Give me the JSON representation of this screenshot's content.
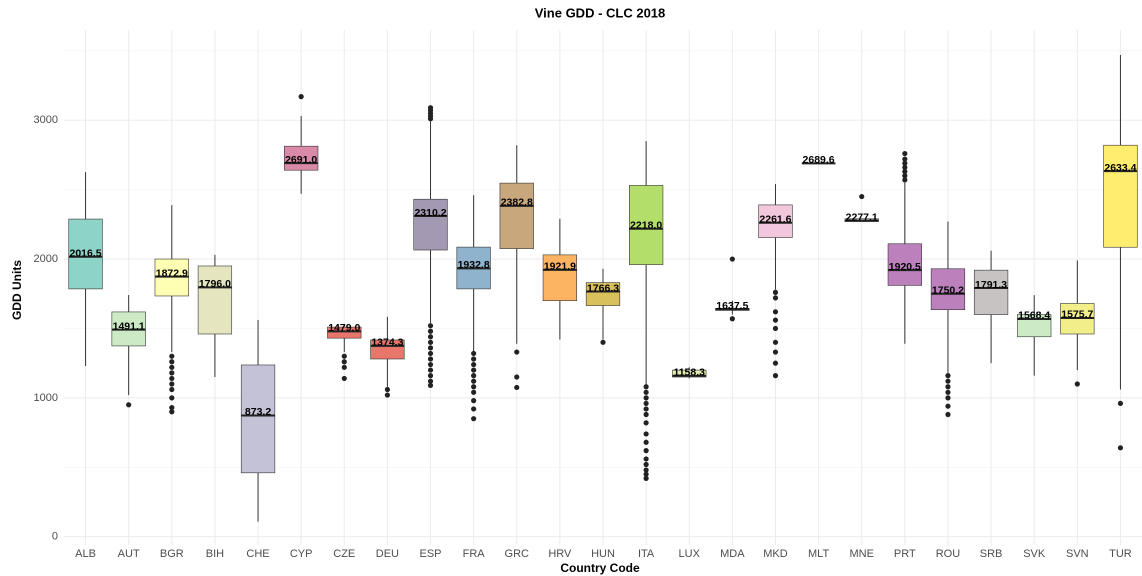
{
  "chart_data": {
    "type": "box",
    "title": "Vine GDD - CLC 2018",
    "x_label": "Country Code",
    "y_label": "GDD Units",
    "ylim": [
      -60,
      3650
    ],
    "yticks": [
      0,
      1000,
      2000,
      3000
    ],
    "minor_yticks": [
      500,
      1500,
      2500,
      3500
    ],
    "grid": true,
    "categories": [
      "ALB",
      "AUT",
      "BGR",
      "BIH",
      "CHE",
      "CYP",
      "CZE",
      "DEU",
      "ESP",
      "FRA",
      "GRC",
      "HRV",
      "HUN",
      "ITA",
      "LUX",
      "MDA",
      "MKD",
      "MLT",
      "MNE",
      "PRT",
      "ROU",
      "SRB",
      "SVK",
      "SVN",
      "TUR"
    ],
    "boxes": [
      {
        "low": 1230,
        "q1": 1785,
        "median": 2016.5,
        "value_label": "2016.5",
        "q3": 2288,
        "high": 2626,
        "outliers": [],
        "color": "#8dd3c7"
      },
      {
        "low": 1020,
        "q1": 1374,
        "median": 1491.1,
        "value_label": "1491.1",
        "q3": 1619,
        "high": 1741,
        "outliers": [
          950
        ],
        "color": "#ccebc5"
      },
      {
        "low": 1330,
        "q1": 1734,
        "median": 1872.9,
        "value_label": "1872.9",
        "q3": 2000,
        "high": 2388,
        "outliers": [
          1300,
          1260,
          1220,
          1180,
          1140,
          1100,
          1060,
          1000,
          930,
          900
        ],
        "color": "#ffffb3"
      },
      {
        "low": 1150,
        "q1": 1460,
        "median": 1796,
        "value_label": "1796.0",
        "q3": 1950,
        "high": 2030,
        "outliers": [],
        "color": "#e5e6c0"
      },
      {
        "low": 108,
        "q1": 460,
        "median": 873.2,
        "value_label": "873.2",
        "q3": 1237,
        "high": 1561,
        "outliers": [],
        "color": "#c4c2d6"
      },
      {
        "low": 2470,
        "q1": 2640,
        "median": 2691,
        "value_label": "2691.0",
        "q3": 2813,
        "high": 3030,
        "outliers": [
          3170
        ],
        "color": "#d98aa8"
      },
      {
        "low": 1330,
        "q1": 1430,
        "median": 1479,
        "value_label": "1479.0",
        "q3": 1510,
        "high": 1530,
        "outliers": [
          1300,
          1260,
          1220,
          1140
        ],
        "color": "#e8766b"
      },
      {
        "low": 1080,
        "q1": 1280,
        "median": 1374.3,
        "value_label": "1374.3",
        "q3": 1417,
        "high": 1583,
        "outliers": [
          1060,
          1020
        ],
        "color": "#e8766b"
      },
      {
        "low": 1540,
        "q1": 2065,
        "median": 2310.2,
        "value_label": "2310.2",
        "q3": 2431,
        "high": 2990,
        "outliers": [
          3010,
          3030,
          3050,
          3070,
          3090,
          1520,
          1480,
          1440,
          1400,
          1360,
          1320,
          1280,
          1240,
          1200,
          1160,
          1120,
          1090
        ],
        "color": "#a499b3"
      },
      {
        "low": 1330,
        "q1": 1785,
        "median": 1932.8,
        "value_label": "1932.8",
        "q3": 2086,
        "high": 2460,
        "outliers": [
          1320,
          1280,
          1240,
          1200,
          1160,
          1120,
          1080,
          1040,
          980,
          920,
          850
        ],
        "color": "#8fb3cd"
      },
      {
        "low": 1390,
        "q1": 2075,
        "median": 2382.8,
        "value_label": "2382.8",
        "q3": 2547,
        "high": 2820,
        "outliers": [
          1330,
          1150,
          1075
        ],
        "color": "#c9a77c"
      },
      {
        "low": 1420,
        "q1": 1700,
        "median": 1921.9,
        "value_label": "1921.9",
        "q3": 2030,
        "high": 2290,
        "outliers": [],
        "color": "#fdb462"
      },
      {
        "low": 1420,
        "q1": 1665,
        "median": 1766.3,
        "value_label": "1766.3",
        "q3": 1830,
        "high": 1930,
        "outliers": [
          1400
        ],
        "color": "#d8c15c"
      },
      {
        "low": 1090,
        "q1": 1960,
        "median": 2218,
        "value_label": "2218.0",
        "q3": 2530,
        "high": 2850,
        "outliers": [
          1080,
          1040,
          1000,
          960,
          920,
          880,
          820,
          740,
          680,
          620,
          560,
          520,
          480,
          450,
          420
        ],
        "color": "#b3de69"
      },
      {
        "low": 1140,
        "q1": 1150,
        "median": 1158.3,
        "value_label": "1158.3",
        "q3": 1200,
        "high": 1220,
        "outliers": [],
        "color": "#e4ecb0"
      },
      {
        "low": 1600,
        "q1": 1630,
        "median": 1637.5,
        "value_label": "1637.5",
        "q3": 1645,
        "high": 1700,
        "outliers": [
          2000,
          1570
        ],
        "color": "#cccccc"
      },
      {
        "low": 1780,
        "q1": 2155,
        "median": 2261.6,
        "value_label": "2261.6",
        "q3": 2390,
        "high": 2540,
        "outliers": [
          1760,
          1720,
          1620,
          1560,
          1500,
          1400,
          1330,
          1250,
          1160
        ],
        "color": "#f2c6dc"
      },
      {
        "low": 2689.6,
        "q1": 2689.6,
        "median": 2689.6,
        "value_label": "2689.6",
        "q3": 2689.6,
        "high": 2689.6,
        "outliers": [],
        "color": "#d9d9d9"
      },
      {
        "low": 2270,
        "q1": 2270,
        "median": 2277.1,
        "value_label": "2277.1",
        "q3": 2290,
        "high": 2290,
        "outliers": [
          2450
        ],
        "color": "#d9d9d9"
      },
      {
        "low": 1390,
        "q1": 1810,
        "median": 1920.5,
        "value_label": "1920.5",
        "q3": 2110,
        "high": 2550,
        "outliers": [
          2570,
          2600,
          2630,
          2660,
          2690,
          2720,
          2760
        ],
        "color": "#bc80bd"
      },
      {
        "low": 1180,
        "q1": 1635,
        "median": 1750.2,
        "value_label": "1750.2",
        "q3": 1930,
        "high": 2270,
        "outliers": [
          1160,
          1120,
          1080,
          1040,
          1000,
          940,
          880
        ],
        "color": "#bc80bd"
      },
      {
        "low": 1250,
        "q1": 1600,
        "median": 1791.3,
        "value_label": "1791.3",
        "q3": 1920,
        "high": 2060,
        "outliers": [],
        "color": "#c7c3c3"
      },
      {
        "low": 1160,
        "q1": 1440,
        "median": 1568.4,
        "value_label": "1568.4",
        "q3": 1600,
        "high": 1740,
        "outliers": [],
        "color": "#ccebc5"
      },
      {
        "low": 1200,
        "q1": 1460,
        "median": 1575.7,
        "value_label": "1575.7",
        "q3": 1680,
        "high": 1990,
        "outliers": [
          1100
        ],
        "color": "#f2ef8a"
      },
      {
        "low": 1060,
        "q1": 2085,
        "median": 2633.4,
        "value_label": "2633.4",
        "q3": 2820,
        "high": 3470,
        "outliers": [
          960,
          640
        ],
        "color": "#ffed6f"
      }
    ]
  }
}
